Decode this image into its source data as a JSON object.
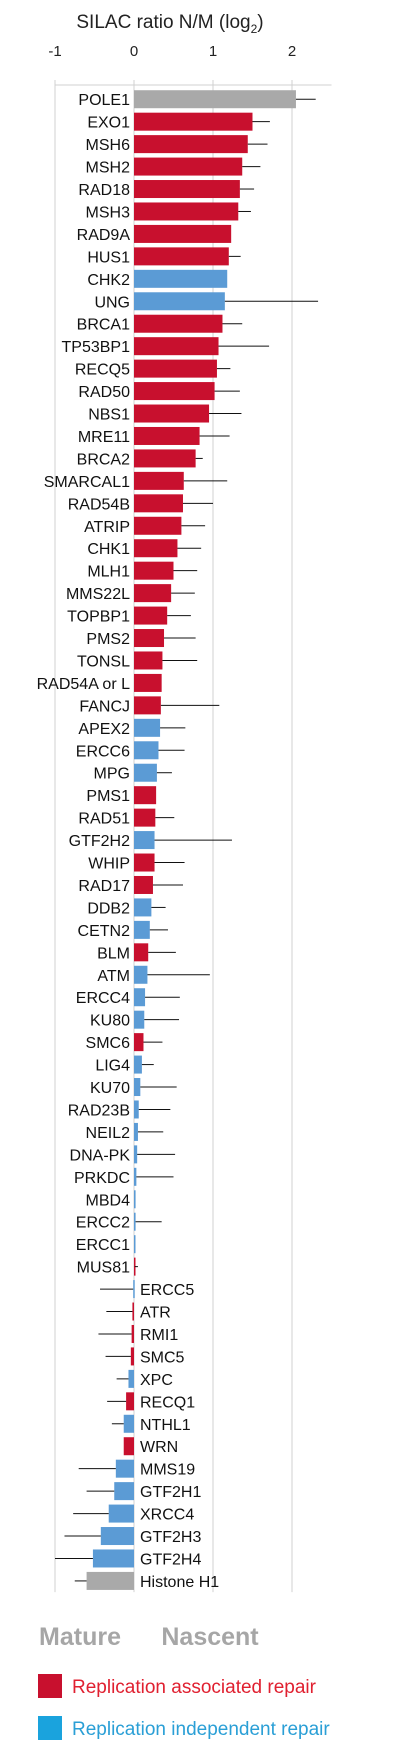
{
  "chart_data": {
    "type": "bar",
    "orientation": "horizontal",
    "title": "SILAC ratio N/M (log",
    "title_subscript": "2",
    "title_suffix": ")",
    "x_ticks": [
      "-1",
      "0",
      "1",
      "2"
    ],
    "xlim": [
      -1,
      2.5
    ],
    "grid": true,
    "colors": {
      "replication_associated": "#c8102e",
      "replication_independent": "#5b9bd5",
      "unclassified": "#a9a9a9"
    },
    "series": [
      {
        "name": "POLE1",
        "value": 2.05,
        "error": 0.25,
        "group": "unclassified"
      },
      {
        "name": "EXO1",
        "value": 1.5,
        "error": 0.22,
        "group": "replication_associated"
      },
      {
        "name": "MSH6",
        "value": 1.44,
        "error": 0.25,
        "group": "replication_associated"
      },
      {
        "name": "MSH2",
        "value": 1.37,
        "error": 0.23,
        "group": "replication_associated"
      },
      {
        "name": "RAD18",
        "value": 1.34,
        "error": 0.18,
        "group": "replication_associated"
      },
      {
        "name": "MSH3",
        "value": 1.32,
        "error": 0.16,
        "group": "replication_associated"
      },
      {
        "name": "RAD9A",
        "value": 1.23,
        "error": 0.0,
        "group": "replication_associated"
      },
      {
        "name": "HUS1",
        "value": 1.2,
        "error": 0.15,
        "group": "replication_associated"
      },
      {
        "name": "CHK2",
        "value": 1.18,
        "error": 0.0,
        "group": "replication_independent"
      },
      {
        "name": "UNG",
        "value": 1.15,
        "error": 1.18,
        "group": "replication_independent"
      },
      {
        "name": "BRCA1",
        "value": 1.12,
        "error": 0.25,
        "group": "replication_associated"
      },
      {
        "name": "TP53BP1",
        "value": 1.07,
        "error": 0.64,
        "group": "replication_associated"
      },
      {
        "name": "RECQ5",
        "value": 1.05,
        "error": 0.17,
        "group": "replication_associated"
      },
      {
        "name": "RAD50",
        "value": 1.02,
        "error": 0.32,
        "group": "replication_associated"
      },
      {
        "name": "NBS1",
        "value": 0.95,
        "error": 0.41,
        "group": "replication_associated"
      },
      {
        "name": "MRE11",
        "value": 0.83,
        "error": 0.38,
        "group": "replication_associated"
      },
      {
        "name": "BRCA2",
        "value": 0.78,
        "error": 0.09,
        "group": "replication_associated"
      },
      {
        "name": "SMARCAL1",
        "value": 0.63,
        "error": 0.55,
        "group": "replication_associated"
      },
      {
        "name": "RAD54B",
        "value": 0.62,
        "error": 0.38,
        "group": "replication_associated"
      },
      {
        "name": "ATRIP",
        "value": 0.6,
        "error": 0.3,
        "group": "replication_associated"
      },
      {
        "name": "CHK1",
        "value": 0.55,
        "error": 0.3,
        "group": "replication_associated"
      },
      {
        "name": "MLH1",
        "value": 0.5,
        "error": 0.3,
        "group": "replication_associated"
      },
      {
        "name": "MMS22L",
        "value": 0.47,
        "error": 0.3,
        "group": "replication_associated"
      },
      {
        "name": "TOPBP1",
        "value": 0.42,
        "error": 0.3,
        "group": "replication_associated"
      },
      {
        "name": "PMS2",
        "value": 0.38,
        "error": 0.4,
        "group": "replication_associated"
      },
      {
        "name": "TONSL",
        "value": 0.36,
        "error": 0.44,
        "group": "replication_associated"
      },
      {
        "name": "RAD54A or L",
        "value": 0.35,
        "error": 0.0,
        "group": "replication_associated"
      },
      {
        "name": "FANCJ",
        "value": 0.34,
        "error": 0.74,
        "group": "replication_associated"
      },
      {
        "name": "APEX2",
        "value": 0.33,
        "error": 0.32,
        "group": "replication_independent"
      },
      {
        "name": "ERCC6",
        "value": 0.31,
        "error": 0.33,
        "group": "replication_independent"
      },
      {
        "name": "MPG",
        "value": 0.29,
        "error": 0.19,
        "group": "replication_independent"
      },
      {
        "name": "PMS1",
        "value": 0.28,
        "error": 0.0,
        "group": "replication_associated"
      },
      {
        "name": "RAD51",
        "value": 0.27,
        "error": 0.24,
        "group": "replication_associated"
      },
      {
        "name": "GTF2H2",
        "value": 0.26,
        "error": 0.98,
        "group": "replication_independent"
      },
      {
        "name": "WHIP",
        "value": 0.26,
        "error": 0.38,
        "group": "replication_associated"
      },
      {
        "name": "RAD17",
        "value": 0.24,
        "error": 0.38,
        "group": "replication_associated"
      },
      {
        "name": "DDB2",
        "value": 0.22,
        "error": 0.18,
        "group": "replication_independent"
      },
      {
        "name": "CETN2",
        "value": 0.2,
        "error": 0.23,
        "group": "replication_independent"
      },
      {
        "name": "BLM",
        "value": 0.18,
        "error": 0.35,
        "group": "replication_associated"
      },
      {
        "name": "ATM",
        "value": 0.17,
        "error": 0.79,
        "group": "replication_independent"
      },
      {
        "name": "ERCC4",
        "value": 0.14,
        "error": 0.44,
        "group": "replication_independent"
      },
      {
        "name": "KU80",
        "value": 0.13,
        "error": 0.44,
        "group": "replication_independent"
      },
      {
        "name": "SMC6",
        "value": 0.12,
        "error": 0.24,
        "group": "replication_associated"
      },
      {
        "name": "LIG4",
        "value": 0.1,
        "error": 0.15,
        "group": "replication_independent"
      },
      {
        "name": "KU70",
        "value": 0.08,
        "error": 0.46,
        "group": "replication_independent"
      },
      {
        "name": "RAD23B",
        "value": 0.06,
        "error": 0.4,
        "group": "replication_independent"
      },
      {
        "name": "NEIL2",
        "value": 0.05,
        "error": 0.32,
        "group": "replication_independent"
      },
      {
        "name": "DNA-PK",
        "value": 0.04,
        "error": 0.48,
        "group": "replication_independent"
      },
      {
        "name": "PRKDC",
        "value": 0.03,
        "error": 0.47,
        "group": "replication_independent"
      },
      {
        "name": "MBD4",
        "value": 0.02,
        "error": 0.0,
        "group": "replication_independent"
      },
      {
        "name": "ERCC2",
        "value": 0.02,
        "error": 0.33,
        "group": "replication_independent"
      },
      {
        "name": "ERCC1",
        "value": 0.01,
        "error": 0.0,
        "group": "replication_independent"
      },
      {
        "name": "MUS81",
        "value": 0.01,
        "error": 0.04,
        "group": "replication_associated"
      },
      {
        "name": "ERCC5",
        "value": -0.01,
        "error": 0.42,
        "group": "replication_independent"
      },
      {
        "name": "ATR",
        "value": -0.02,
        "error": 0.33,
        "group": "replication_associated"
      },
      {
        "name": "RMI1",
        "value": -0.03,
        "error": 0.42,
        "group": "replication_associated"
      },
      {
        "name": "SMC5",
        "value": -0.04,
        "error": 0.32,
        "group": "replication_associated"
      },
      {
        "name": "XPC",
        "value": -0.07,
        "error": 0.15,
        "group": "replication_independent"
      },
      {
        "name": "RECQ1",
        "value": -0.1,
        "error": 0.24,
        "group": "replication_associated"
      },
      {
        "name": "NTHL1",
        "value": -0.13,
        "error": 0.15,
        "group": "replication_independent"
      },
      {
        "name": "WRN",
        "value": -0.13,
        "error": 0.0,
        "group": "replication_associated"
      },
      {
        "name": "MMS19",
        "value": -0.23,
        "error": 0.47,
        "group": "replication_independent"
      },
      {
        "name": "GTF2H1",
        "value": -0.25,
        "error": 0.35,
        "group": "replication_independent"
      },
      {
        "name": "XRCC4",
        "value": -0.32,
        "error": 0.45,
        "group": "replication_independent"
      },
      {
        "name": "GTF2H3",
        "value": -0.42,
        "error": 0.46,
        "group": "replication_independent"
      },
      {
        "name": "GTF2H4",
        "value": -0.52,
        "error": 0.48,
        "group": "replication_independent"
      },
      {
        "name": "Histone H1",
        "value": -0.6,
        "error": 0.15,
        "group": "unclassified"
      }
    ],
    "axis_side_labels": {
      "left": "Mature",
      "right": "Nascent"
    },
    "legend": [
      {
        "label": "Replication associated repair",
        "color": "#c8102e",
        "text_color": "#e02030",
        "group": "replication_associated"
      },
      {
        "label": "Replication independent repair",
        "color": "#1aa3dd",
        "text_color": "#2a9fd6",
        "group": "replication_independent"
      }
    ],
    "legend_position": "bottom"
  }
}
